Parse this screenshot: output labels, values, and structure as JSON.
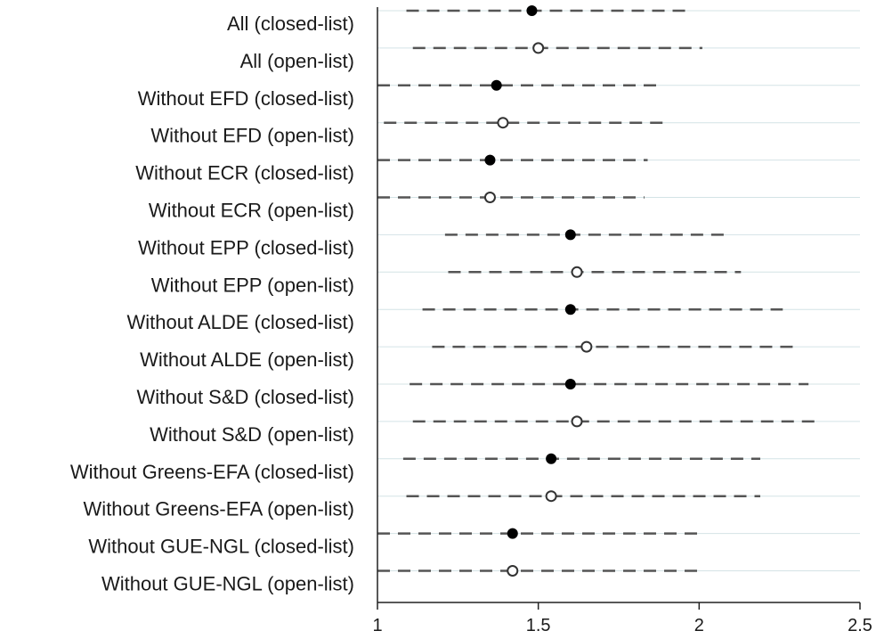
{
  "chart_data": {
    "type": "scatter",
    "title": "",
    "xlabel": "",
    "ylabel": "",
    "xlim": [
      1,
      2.5
    ],
    "xticks": [
      1,
      1.5,
      2,
      2.5
    ],
    "xtick_labels": [
      "1",
      "1.5",
      "2",
      "2.5"
    ],
    "grid": "horizontal",
    "rows": [
      {
        "label": "All (closed-list)",
        "est": 1.48,
        "lo": 1.09,
        "hi": 1.98,
        "marker": "filled"
      },
      {
        "label": "All (open-list)",
        "est": 1.5,
        "lo": 1.11,
        "hi": 2.01,
        "marker": "hollow"
      },
      {
        "label": "Without EFD (closed-list)",
        "est": 1.37,
        "lo": 1.0,
        "hi": 1.87,
        "marker": "filled"
      },
      {
        "label": "Without EFD (open-list)",
        "est": 1.39,
        "lo": 1.02,
        "hi": 1.89,
        "marker": "hollow"
      },
      {
        "label": "Without ECR (closed-list)",
        "est": 1.35,
        "lo": 1.0,
        "hi": 1.84,
        "marker": "filled"
      },
      {
        "label": "Without ECR (open-list)",
        "est": 1.35,
        "lo": 1.0,
        "hi": 1.83,
        "marker": "hollow"
      },
      {
        "label": "Without EPP (closed-list)",
        "est": 1.6,
        "lo": 1.21,
        "hi": 2.09,
        "marker": "filled"
      },
      {
        "label": "Without EPP (open-list)",
        "est": 1.62,
        "lo": 1.22,
        "hi": 2.13,
        "marker": "hollow"
      },
      {
        "label": "Without ALDE (closed-list)",
        "est": 1.6,
        "lo": 1.14,
        "hi": 2.26,
        "marker": "filled"
      },
      {
        "label": "Without ALDE (open-list)",
        "est": 1.65,
        "lo": 1.17,
        "hi": 2.31,
        "marker": "hollow"
      },
      {
        "label": "Without S&D (closed-list)",
        "est": 1.6,
        "lo": 1.1,
        "hi": 2.34,
        "marker": "filled"
      },
      {
        "label": "Without S&D (open-list)",
        "est": 1.62,
        "lo": 1.11,
        "hi": 2.37,
        "marker": "hollow"
      },
      {
        "label": "Without Greens-EFA (closed-list)",
        "est": 1.54,
        "lo": 1.08,
        "hi": 2.19,
        "marker": "filled"
      },
      {
        "label": "Without Greens-EFA (open-list)",
        "est": 1.54,
        "lo": 1.09,
        "hi": 2.19,
        "marker": "hollow"
      },
      {
        "label": "Without GUE-NGL (closed-list)",
        "est": 1.42,
        "lo": 1.0,
        "hi": 2.0,
        "marker": "filled"
      },
      {
        "label": "Without GUE-NGL (open-list)",
        "est": 1.42,
        "lo": 1.0,
        "hi": 2.0,
        "marker": "hollow"
      }
    ]
  }
}
